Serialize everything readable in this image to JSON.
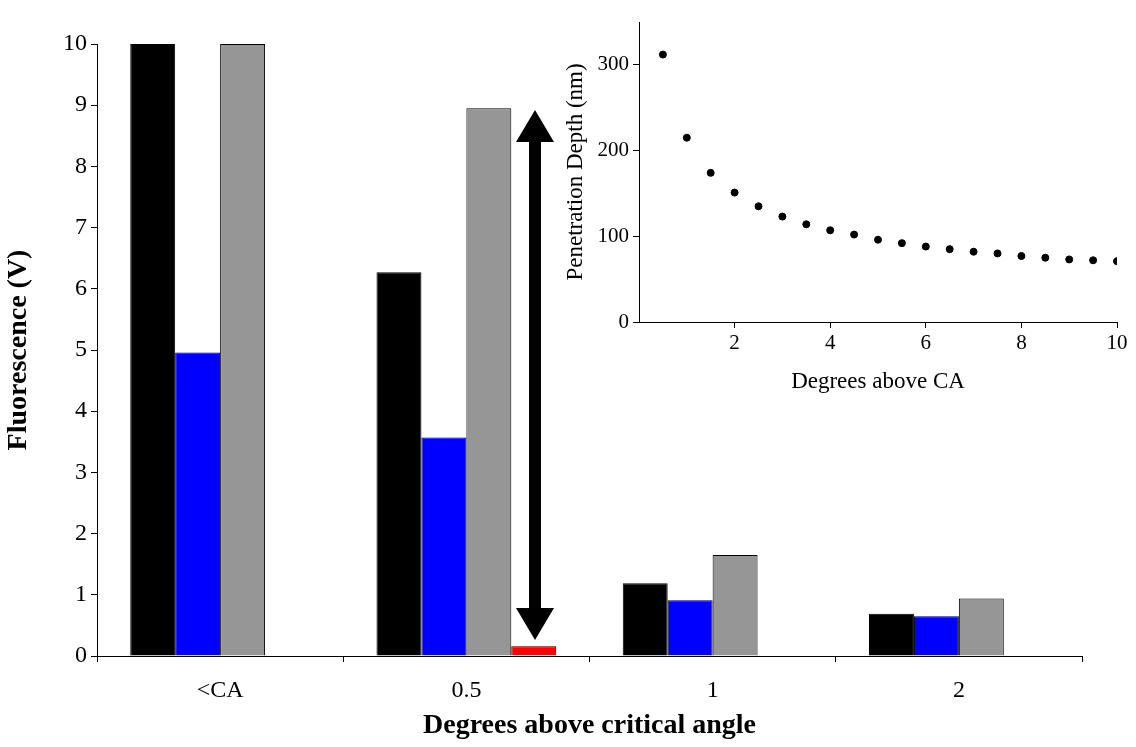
{
  "chart_data": [
    {
      "type": "bar",
      "xlabel": "Degrees above critical angle",
      "ylabel": "Fluorescence (V)",
      "categories": [
        "<CA",
        "0.5",
        "1",
        "2"
      ],
      "series": [
        {
          "color": "#000000",
          "values": [
            10,
            6.27,
            1.19,
            0.69
          ]
        },
        {
          "color": "#0000ff",
          "values": [
            4.96,
            3.57,
            0.91,
            0.65
          ]
        },
        {
          "color": "#969696",
          "values": [
            10,
            8.95,
            1.65,
            0.94
          ]
        },
        {
          "color": "#ff0000",
          "values": [
            null,
            0.16,
            null,
            null
          ]
        }
      ],
      "ylim": [
        0,
        10
      ],
      "yticks": [
        0,
        1,
        2,
        3,
        4,
        5,
        6,
        7,
        8,
        9,
        10
      ],
      "grid": false,
      "legend": false
    },
    {
      "type": "scatter",
      "xlabel": "Degrees above CA",
      "ylabel": "Penetration Depth (nm)",
      "x": [
        0.5,
        1,
        1.5,
        2,
        2.5,
        3,
        3.5,
        4,
        4.5,
        5,
        5.5,
        6,
        6.5,
        7,
        7.5,
        8,
        8.5,
        9,
        9.5,
        10
      ],
      "series": [
        {
          "color": "#000000",
          "values": [
            312,
            215,
            174,
            151,
            135,
            123,
            114,
            107,
            102,
            96,
            92,
            88,
            85,
            82,
            80,
            77,
            75,
            73,
            72,
            71
          ]
        }
      ],
      "xlim": [
        0,
        10
      ],
      "xticks": [
        2,
        4,
        6,
        8,
        10
      ],
      "ylim": [
        0,
        350
      ],
      "yticks": [
        0,
        100,
        200,
        300
      ],
      "marker": "circle",
      "grid": false,
      "legend": false
    }
  ]
}
